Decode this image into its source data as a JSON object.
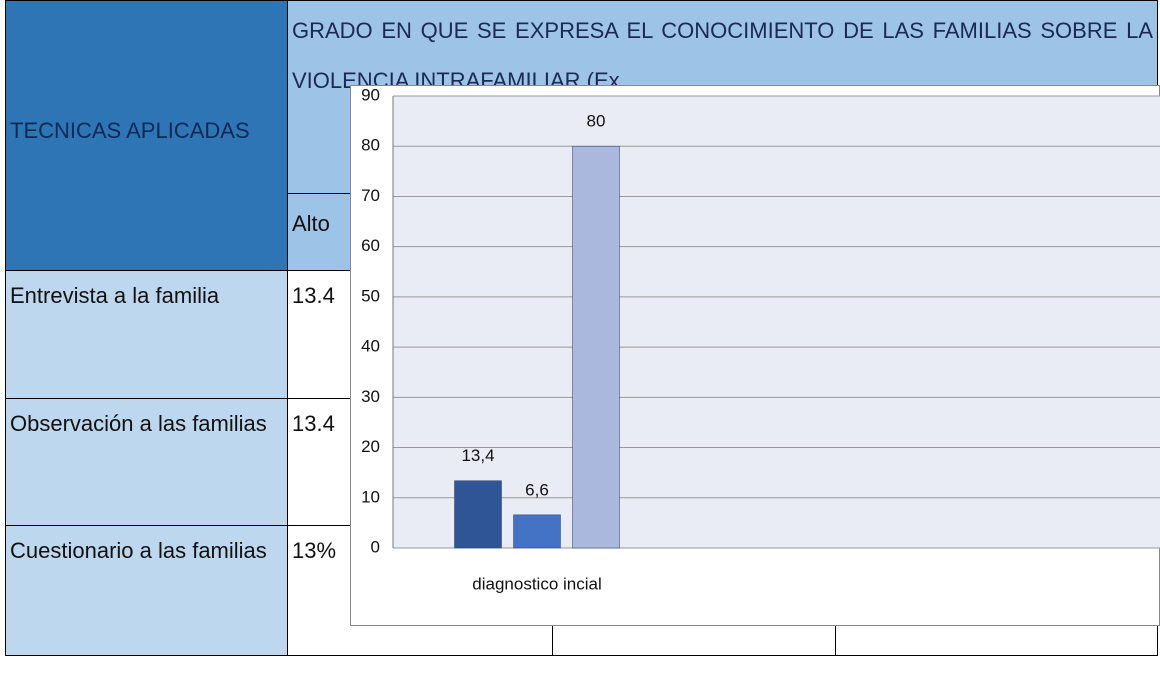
{
  "table": {
    "header": {
      "technique": "TECNICAS APLICADAS",
      "title": "GRADO EN QUE SE EXPRESA EL CONOCIMIENTO DE LAS FAMILIAS SOBRE LA VIOLENCIA INTRAFAMILIAR (Ex",
      "level": "Alto"
    },
    "rows": [
      [
        "Entrevista a la familia",
        "13.4"
      ],
      [
        "Observación a las familias",
        "13.4"
      ],
      [
        "Cuestionario a las familias",
        "13%"
      ]
    ]
  },
  "chart_data": {
    "type": "bar",
    "categories": [
      "diagnostico incial"
    ],
    "series": [
      {
        "color": "#2f5597",
        "values": [
          13.4
        ],
        "value_labels": [
          "13,4"
        ]
      },
      {
        "color": "#4472c4",
        "values": [
          6.6
        ],
        "value_labels": [
          "6,6"
        ]
      },
      {
        "color": "#a9b8dc",
        "values": [
          80
        ],
        "value_labels": [
          "80"
        ]
      }
    ],
    "ylim": [
      0,
      90
    ],
    "yticks": [
      0,
      10,
      20,
      30,
      40,
      50,
      60,
      70,
      80,
      90
    ],
    "grid": true
  }
}
